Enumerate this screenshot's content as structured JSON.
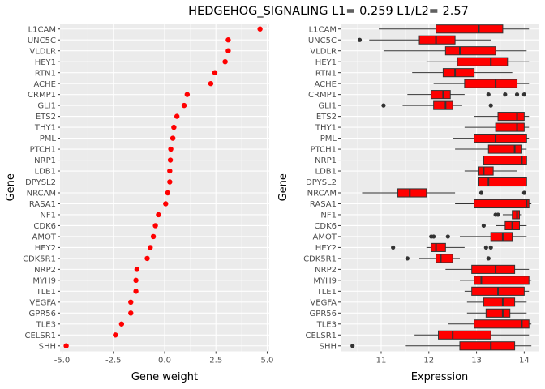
{
  "title": "HEDGEHOG_SIGNALING L1= 0.259 L1/L2= 2.57",
  "chart_data": [
    {
      "type": "scatter",
      "xlabel": "Gene weight",
      "ylabel": "Gene",
      "xlim": [
        -5.1,
        5.1
      ],
      "xticks": [
        -5.0,
        -2.5,
        0.0,
        2.5,
        5.0
      ],
      "xtick_labels": [
        "-5.0",
        "-2.5",
        "0.0",
        "2.5",
        "5.0"
      ],
      "point_color": "#ff0000",
      "genes": [
        "L1CAM",
        "UNC5C",
        "VLDLR",
        "HEY1",
        "RTN1",
        "ACHE",
        "CRMP1",
        "GLI1",
        "ETS2",
        "THY1",
        "PML",
        "PTCH1",
        "NRP1",
        "LDB1",
        "DPYSL2",
        "NRCAM",
        "RASA1",
        "NF1",
        "CDK6",
        "AMOT",
        "HEY2",
        "CDK5R1",
        "NRP2",
        "MYH9",
        "TLE1",
        "VEGFA",
        "GPR56",
        "TLE3",
        "CELSR1",
        "SHH"
      ],
      "values": [
        4.65,
        3.1,
        3.1,
        2.95,
        2.45,
        2.25,
        1.1,
        0.95,
        0.6,
        0.45,
        0.4,
        0.3,
        0.28,
        0.25,
        0.25,
        0.15,
        0.05,
        -0.3,
        -0.45,
        -0.55,
        -0.7,
        -0.85,
        -1.35,
        -1.4,
        -1.4,
        -1.65,
        -1.65,
        -2.1,
        -2.4,
        -4.8
      ]
    },
    {
      "type": "boxplot",
      "xlabel": "Expression",
      "ylabel": "Gene",
      "xlim": [
        10.15,
        14.3
      ],
      "xticks": [
        11,
        12,
        13,
        14
      ],
      "xtick_labels": [
        "11",
        "12",
        "13",
        "14"
      ],
      "box_color": "#ff0000",
      "genes": [
        "L1CAM",
        "UNC5C",
        "VLDLR",
        "HEY1",
        "RTN1",
        "ACHE",
        "CRMP1",
        "GLI1",
        "ETS2",
        "THY1",
        "PML",
        "PTCH1",
        "NRP1",
        "LDB1",
        "DPYSL2",
        "NRCAM",
        "RASA1",
        "NF1",
        "CDK6",
        "AMOT",
        "HEY2",
        "CDK5R1",
        "NRP2",
        "MYH9",
        "TLE1",
        "VEGFA",
        "GPR56",
        "TLE3",
        "CELSR1",
        "SHH"
      ],
      "boxes": [
        {
          "gene": "L1CAM",
          "whislo": 10.95,
          "q1": 12.15,
          "med": 13.05,
          "q3": 13.55,
          "whishi": 14.1,
          "outliers": []
        },
        {
          "gene": "UNC5C",
          "whislo": 10.75,
          "q1": 11.8,
          "med": 12.15,
          "q3": 12.55,
          "whishi": 13.3,
          "outliers": [
            10.55
          ]
        },
        {
          "gene": "VLDLR",
          "whislo": 11.05,
          "q1": 12.35,
          "med": 12.65,
          "q3": 13.4,
          "whishi": 14.05,
          "outliers": []
        },
        {
          "gene": "HEY1",
          "whislo": 11.95,
          "q1": 12.6,
          "med": 13.3,
          "q3": 13.65,
          "whishi": 14.1,
          "outliers": []
        },
        {
          "gene": "RTN1",
          "whislo": 11.65,
          "q1": 12.3,
          "med": 12.55,
          "q3": 12.95,
          "whishi": 13.75,
          "outliers": []
        },
        {
          "gene": "ACHE",
          "whislo": 12.1,
          "q1": 12.75,
          "med": 13.4,
          "q3": 13.85,
          "whishi": 14.1,
          "outliers": []
        },
        {
          "gene": "CRMP1",
          "whislo": 11.55,
          "q1": 12.05,
          "med": 12.3,
          "q3": 12.45,
          "whishi": 12.75,
          "outliers": [
            13.25,
            13.6,
            13.85,
            14.0
          ]
        },
        {
          "gene": "GLI1",
          "whislo": 11.45,
          "q1": 12.1,
          "med": 12.35,
          "q3": 12.5,
          "whishi": 12.7,
          "outliers": [
            11.05,
            13.3
          ]
        },
        {
          "gene": "ETS2",
          "whislo": 12.95,
          "q1": 13.45,
          "med": 13.85,
          "q3": 14.0,
          "whishi": 14.1,
          "outliers": []
        },
        {
          "gene": "THY1",
          "whislo": 12.75,
          "q1": 13.4,
          "med": 13.85,
          "q3": 14.0,
          "whishi": 14.1,
          "outliers": []
        },
        {
          "gene": "PML",
          "whislo": 12.5,
          "q1": 12.95,
          "med": 13.4,
          "q3": 14.05,
          "whishi": 14.1,
          "outliers": []
        },
        {
          "gene": "PTCH1",
          "whislo": 12.55,
          "q1": 13.25,
          "med": 13.8,
          "q3": 13.95,
          "whishi": 14.05,
          "outliers": []
        },
        {
          "gene": "NRP1",
          "whislo": 12.9,
          "q1": 13.15,
          "med": 13.95,
          "q3": 14.05,
          "whishi": 14.1,
          "outliers": []
        },
        {
          "gene": "LDB1",
          "whislo": 12.75,
          "q1": 13.05,
          "med": 13.15,
          "q3": 13.35,
          "whishi": 13.85,
          "outliers": []
        },
        {
          "gene": "DPYSL2",
          "whislo": 12.85,
          "q1": 13.05,
          "med": 13.25,
          "q3": 14.05,
          "whishi": 14.1,
          "outliers": []
        },
        {
          "gene": "NRCAM",
          "whislo": 10.6,
          "q1": 11.35,
          "med": 11.6,
          "q3": 11.95,
          "whishi": 12.55,
          "outliers": [
            13.1,
            14.0
          ]
        },
        {
          "gene": "RASA1",
          "whislo": 12.55,
          "q1": 12.95,
          "med": 14.05,
          "q3": 14.1,
          "whishi": 14.15,
          "outliers": []
        },
        {
          "gene": "NF1",
          "whislo": 13.55,
          "q1": 13.75,
          "med": 13.85,
          "q3": 13.9,
          "whishi": 13.95,
          "outliers": [
            13.4,
            13.45
          ]
        },
        {
          "gene": "CDK6",
          "whislo": 13.4,
          "q1": 13.6,
          "med": 13.75,
          "q3": 13.9,
          "whishi": 14.05,
          "outliers": [
            13.15
          ]
        },
        {
          "gene": "AMOT",
          "whislo": 12.65,
          "q1": 13.3,
          "med": 13.55,
          "q3": 13.75,
          "whishi": 14.05,
          "outliers": [
            12.05,
            12.1,
            12.4
          ]
        },
        {
          "gene": "HEY2",
          "whislo": 11.95,
          "q1": 12.05,
          "med": 12.15,
          "q3": 12.35,
          "whishi": 12.75,
          "outliers": [
            11.25,
            13.2,
            13.3
          ]
        },
        {
          "gene": "CDK5R1",
          "whislo": 11.8,
          "q1": 12.15,
          "med": 12.25,
          "q3": 12.5,
          "whishi": 12.65,
          "outliers": [
            11.55,
            13.25
          ]
        },
        {
          "gene": "NRP2",
          "whislo": 12.35,
          "q1": 12.9,
          "med": 13.4,
          "q3": 13.8,
          "whishi": 14.1,
          "outliers": []
        },
        {
          "gene": "MYH9",
          "whislo": 12.65,
          "q1": 12.95,
          "med": 13.1,
          "q3": 14.1,
          "whishi": 14.15,
          "outliers": []
        },
        {
          "gene": "TLE1",
          "whislo": 12.75,
          "q1": 12.9,
          "med": 13.45,
          "q3": 14.0,
          "whishi": 14.1,
          "outliers": []
        },
        {
          "gene": "VEGFA",
          "whislo": 12.8,
          "q1": 13.15,
          "med": 13.55,
          "q3": 13.8,
          "whishi": 14.05,
          "outliers": []
        },
        {
          "gene": "GPR56",
          "whislo": 12.8,
          "q1": 13.2,
          "med": 13.55,
          "q3": 13.7,
          "whishi": 14.05,
          "outliers": []
        },
        {
          "gene": "TLE3",
          "whislo": 12.4,
          "q1": 12.95,
          "med": 13.95,
          "q3": 14.1,
          "whishi": 14.15,
          "outliers": []
        },
        {
          "gene": "CELSR1",
          "whislo": 11.7,
          "q1": 12.2,
          "med": 12.5,
          "q3": 13.3,
          "whishi": 14.1,
          "outliers": []
        },
        {
          "gene": "SHH",
          "whislo": 11.5,
          "q1": 12.65,
          "med": 13.3,
          "q3": 13.8,
          "whishi": 14.15,
          "outliers": [
            10.4
          ]
        }
      ]
    }
  ]
}
